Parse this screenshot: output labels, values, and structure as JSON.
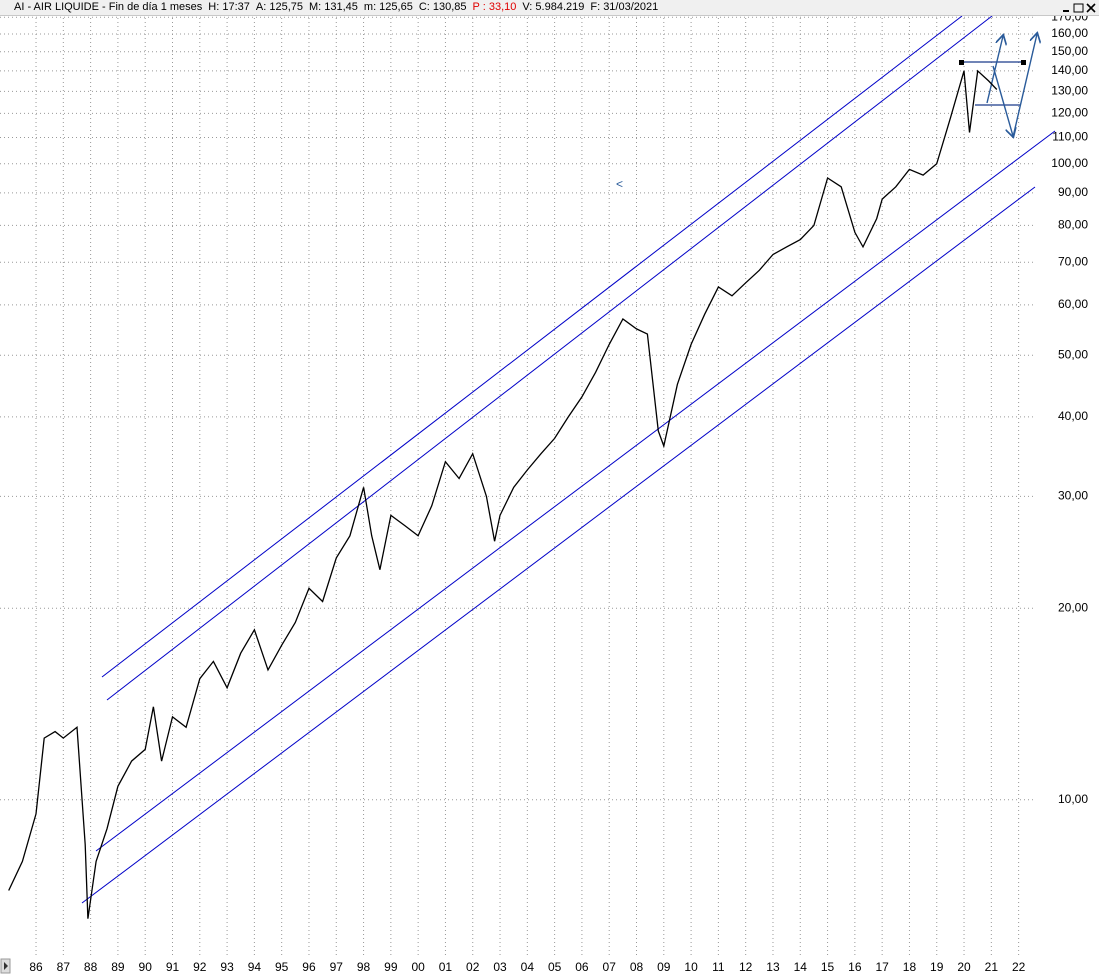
{
  "header": {
    "items": [
      "AI - AIR LIQUIDE - Fin de día 1 meses",
      "H: 17:37",
      "A: 125,75",
      "M: 131,45",
      "m: 125,65",
      "C: 130,85",
      "P : 33,10",
      "V: 5.984.219",
      "F: 31/03/2021"
    ]
  },
  "chart_data": {
    "type": "line",
    "log_scale": true,
    "grid": true,
    "color": "#000000",
    "annotation": "<",
    "x": [
      1985.0,
      1985.5,
      1986.0,
      1986.3,
      1986.7,
      1987.0,
      1987.5,
      1987.8,
      1987.9,
      1988.2,
      1988.6,
      1989.0,
      1989.5,
      1990.0,
      1990.3,
      1990.6,
      1991.0,
      1991.5,
      1992.0,
      1992.5,
      1993.0,
      1993.5,
      1994.0,
      1994.5,
      1995.0,
      1995.5,
      1996.0,
      1996.5,
      1997.0,
      1997.5,
      1998.0,
      1998.3,
      1998.6,
      1999.0,
      1999.5,
      2000.0,
      2000.5,
      2001.0,
      2001.5,
      2002.0,
      2002.5,
      2002.8,
      2003.0,
      2003.5,
      2004.0,
      2004.5,
      2005.0,
      2005.5,
      2006.0,
      2006.5,
      2007.0,
      2007.5,
      2008.0,
      2008.4,
      2008.8,
      2009.0,
      2009.5,
      2010.0,
      2010.5,
      2011.0,
      2011.5,
      2012.0,
      2012.5,
      2013.0,
      2013.5,
      2014.0,
      2014.5,
      2015.0,
      2015.5,
      2016.0,
      2016.3,
      2016.8,
      2017.0,
      2017.5,
      2018.0,
      2018.5,
      2019.0,
      2019.5,
      2020.0,
      2020.2,
      2020.5,
      2020.9,
      2021.2
    ],
    "values": [
      7.2,
      8.0,
      9.5,
      12.5,
      12.8,
      12.5,
      13.0,
      8.5,
      6.5,
      8.0,
      9.0,
      10.5,
      11.5,
      12.0,
      14.0,
      11.5,
      13.5,
      13.0,
      15.5,
      16.5,
      15.0,
      17.0,
      18.5,
      16.0,
      17.5,
      19.0,
      21.5,
      20.5,
      24.0,
      26.0,
      31.0,
      26.0,
      23.0,
      28.0,
      27.0,
      26.0,
      29.0,
      34.0,
      32.0,
      35.0,
      30.0,
      25.5,
      28.0,
      31.0,
      33.0,
      35.0,
      37.0,
      40.0,
      43.0,
      47.0,
      52.0,
      57.0,
      55.0,
      54.0,
      38.0,
      36.0,
      45.0,
      52.0,
      58.0,
      64.0,
      62.0,
      65.0,
      68.0,
      72.0,
      74.0,
      76.0,
      80.0,
      95.0,
      92.0,
      78.0,
      74.0,
      82.0,
      88.0,
      92.0,
      98.0,
      96.0,
      100.0,
      118.0,
      140.0,
      112.0,
      140.0,
      135.0,
      130.85
    ],
    "xlim": [
      1984.68,
      2022.6
    ],
    "xticks": [
      {
        "value": 1986,
        "label": "86"
      },
      {
        "value": 1987,
        "label": "87"
      },
      {
        "value": 1988,
        "label": "88"
      },
      {
        "value": 1989,
        "label": "89"
      },
      {
        "value": 1990,
        "label": "90"
      },
      {
        "value": 1991,
        "label": "91"
      },
      {
        "value": 1992,
        "label": "92"
      },
      {
        "value": 1993,
        "label": "93"
      },
      {
        "value": 1994,
        "label": "94"
      },
      {
        "value": 1995,
        "label": "95"
      },
      {
        "value": 1996,
        "label": "96"
      },
      {
        "value": 1997,
        "label": "97"
      },
      {
        "value": 1998,
        "label": "98"
      },
      {
        "value": 1999,
        "label": "99"
      },
      {
        "value": 2000,
        "label": "00"
      },
      {
        "value": 2001,
        "label": "01"
      },
      {
        "value": 2002,
        "label": "02"
      },
      {
        "value": 2003,
        "label": "03"
      },
      {
        "value": 2004,
        "label": "04"
      },
      {
        "value": 2005,
        "label": "05"
      },
      {
        "value": 2006,
        "label": "06"
      },
      {
        "value": 2007,
        "label": "07"
      },
      {
        "value": 2008,
        "label": "08"
      },
      {
        "value": 2009,
        "label": "09"
      },
      {
        "value": 2010,
        "label": "10"
      },
      {
        "value": 2011,
        "label": "11"
      },
      {
        "value": 2012,
        "label": "12"
      },
      {
        "value": 2013,
        "label": "13"
      },
      {
        "value": 2014,
        "label": "14"
      },
      {
        "value": 2015,
        "label": "15"
      },
      {
        "value": 2016,
        "label": "16"
      },
      {
        "value": 2017,
        "label": "17"
      },
      {
        "value": 2018,
        "label": "18"
      },
      {
        "value": 2019,
        "label": "19"
      },
      {
        "value": 2020,
        "label": "20"
      },
      {
        "value": 2021,
        "label": "21"
      },
      {
        "value": 2022,
        "label": "22"
      }
    ],
    "ylim": [
      5.7,
      172
    ],
    "yticks": [
      {
        "value": 10,
        "label": "10,00"
      },
      {
        "value": 20,
        "label": "20,00"
      },
      {
        "value": 30,
        "label": "30,00"
      },
      {
        "value": 40,
        "label": "40,00"
      },
      {
        "value": 50,
        "label": "50,00"
      },
      {
        "value": 60,
        "label": "60,00"
      },
      {
        "value": 70,
        "label": "70,00"
      },
      {
        "value": 80,
        "label": "80,00"
      },
      {
        "value": 90,
        "label": "90,00"
      },
      {
        "value": 100,
        "label": "100,00"
      },
      {
        "value": 110,
        "label": "110,00"
      },
      {
        "value": 120,
        "label": "120,00"
      },
      {
        "value": 130,
        "label": "130,00"
      },
      {
        "value": 140,
        "label": "140,00"
      },
      {
        "value": 150,
        "label": "150,00"
      },
      {
        "value": 160,
        "label": "160,00"
      },
      {
        "value": 170,
        "label": "170,00"
      }
    ]
  }
}
